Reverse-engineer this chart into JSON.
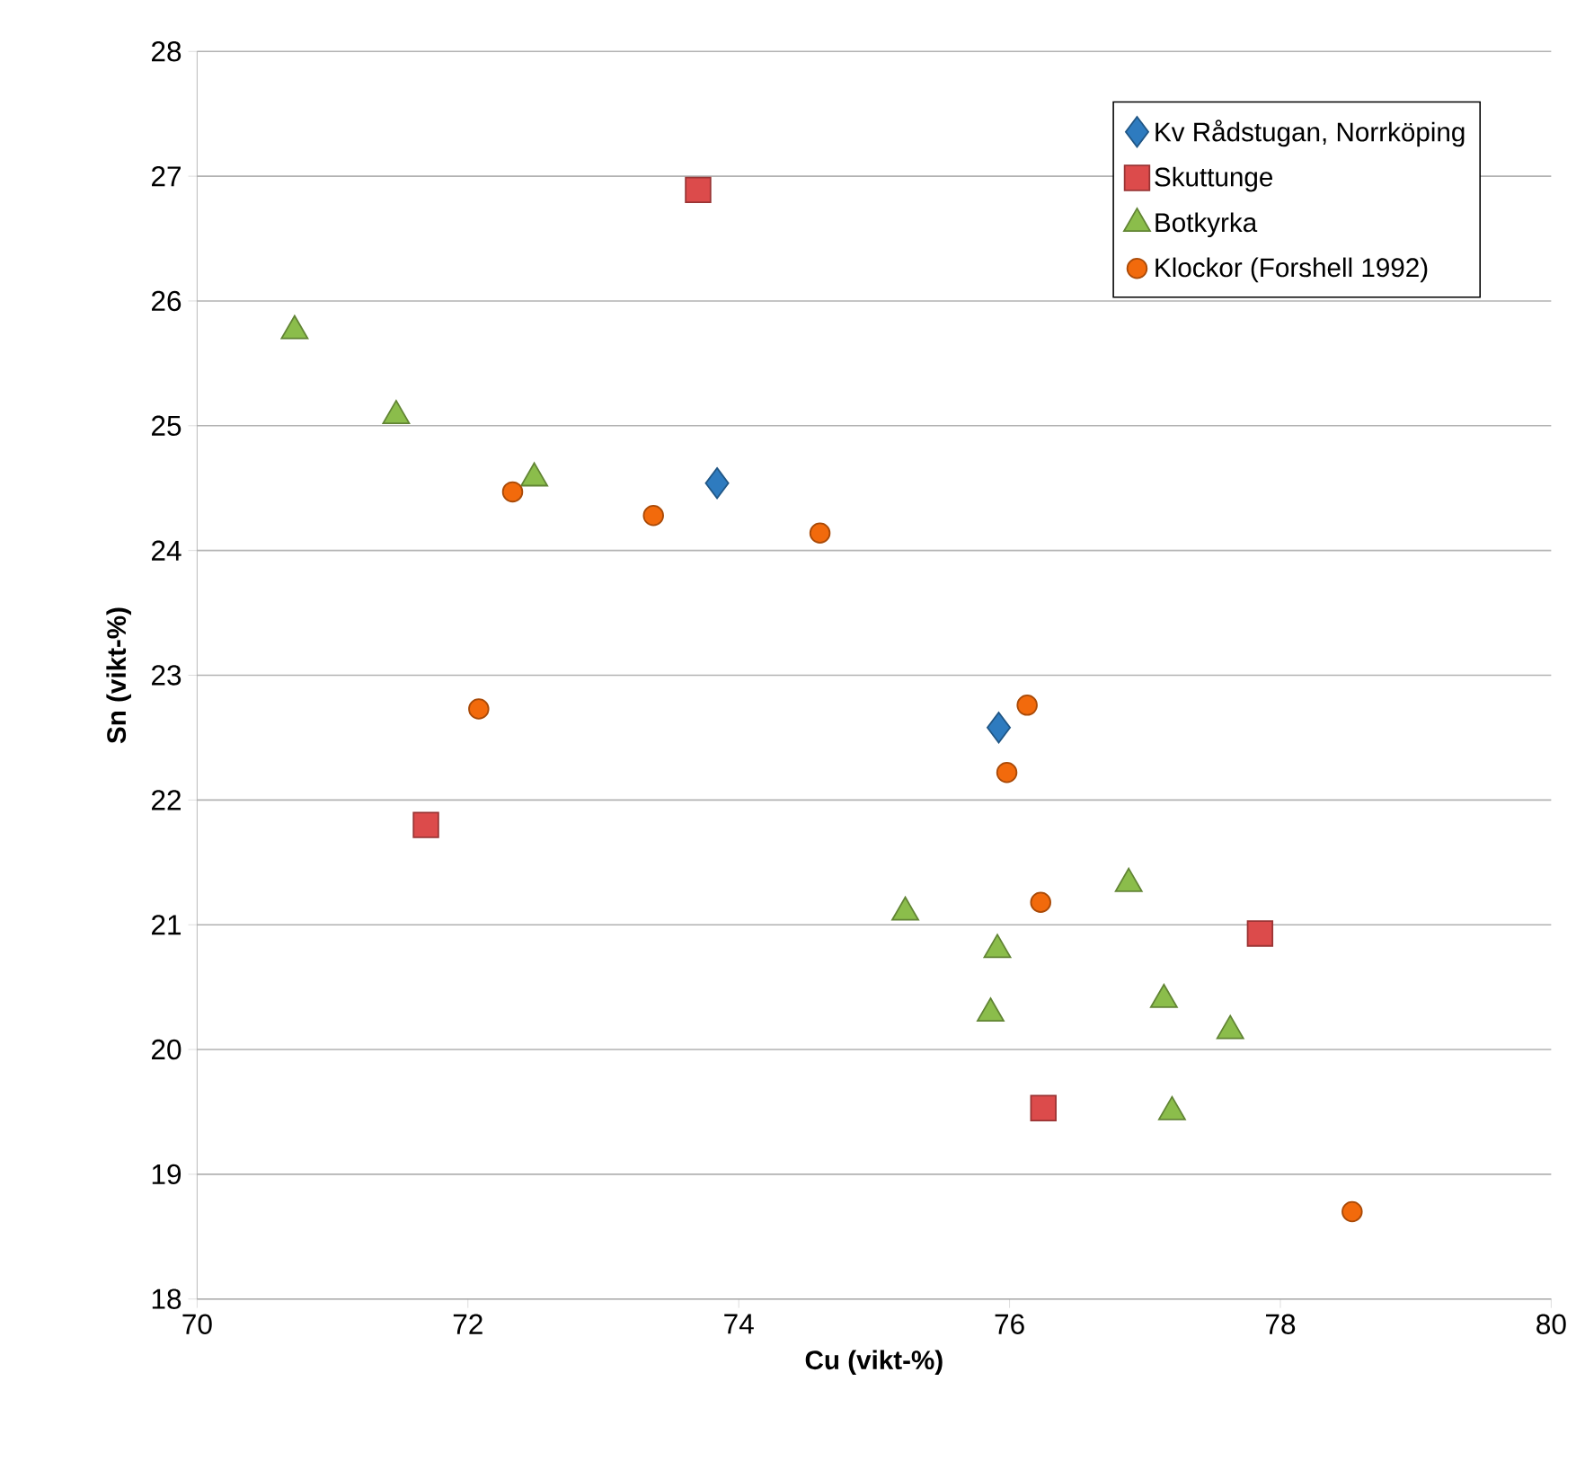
{
  "chart_data": {
    "type": "scatter",
    "xlabel": "Cu (vikt-%)",
    "ylabel": "Sn (vikt-%)",
    "xlim": [
      70,
      80
    ],
    "ylim": [
      18,
      28
    ],
    "xticks": [
      70,
      72,
      74,
      76,
      78,
      80
    ],
    "yticks": [
      18,
      19,
      20,
      21,
      22,
      23,
      24,
      25,
      26,
      27,
      28
    ],
    "grid": "y",
    "legend": "top right",
    "series": [
      {
        "name": "Kv Rådstugan, Norrköping",
        "color": "#2e7bbf",
        "marker": "diamond",
        "x": [
          73.84,
          75.92
        ],
        "values": [
          24.54,
          22.58
        ]
      },
      {
        "name": "Skuttunge",
        "color": "#dc4b4b",
        "marker": "square",
        "x": [
          73.7,
          71.69,
          77.85,
          76.25
        ],
        "values": [
          26.89,
          21.8,
          20.93,
          19.53
        ]
      },
      {
        "name": "Botkyrka",
        "color": "#8bbd4b",
        "marker": "triangle",
        "x": [
          70.72,
          71.47,
          72.49,
          75.23,
          76.88,
          75.91,
          75.86,
          77.14,
          77.63,
          77.2
        ],
        "values": [
          25.76,
          25.08,
          24.58,
          21.1,
          21.33,
          20.8,
          20.29,
          20.4,
          20.15,
          19.5
        ]
      },
      {
        "name": "Klockor (Forshell 1992)",
        "color": "#f26a0c",
        "marker": "circle",
        "x": [
          72.33,
          73.37,
          74.6,
          72.08,
          76.13,
          75.98,
          76.23,
          78.53
        ],
        "values": [
          24.47,
          24.28,
          24.14,
          22.73,
          22.76,
          22.22,
          21.18,
          18.7
        ]
      }
    ]
  }
}
